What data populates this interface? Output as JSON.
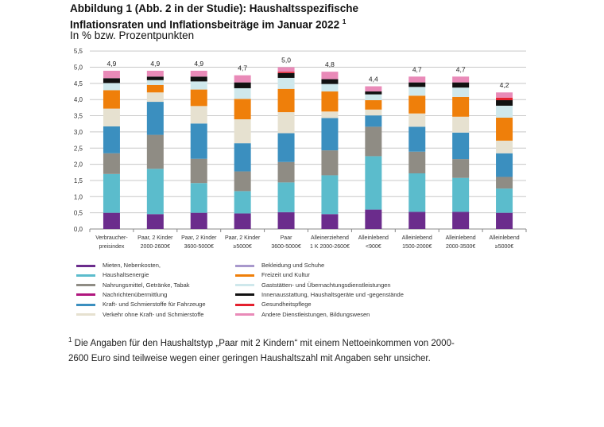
{
  "header": {
    "title_line1": "Abbildung 1 (Abb. 2 in der Studie): Haushaltsspezifische",
    "title_line2": "Inflationsraten und Inflationsbeiträge im Januar 2022",
    "title_sup": "1",
    "subtitle": "In % bzw. Prozentpunkten"
  },
  "chart_data": {
    "type": "bar",
    "stacked": true,
    "title": "Haushaltsspezifische Inflationsraten und Inflationsbeiträge im Januar 2022",
    "ylabel": "In % bzw. Prozentpunkten",
    "ylim": [
      0,
      5.5
    ],
    "yticks": [
      "0,0",
      "0,5",
      "1,0",
      "1,5",
      "2,0",
      "2,5",
      "3,0",
      "3,5",
      "4,0",
      "4,5",
      "5,0",
      "5,5"
    ],
    "grid": true,
    "legend_position": "bottom",
    "categories": [
      [
        "Verbraucher-",
        "preisindex"
      ],
      [
        "Paar, 2 Kinder",
        "2000-2600€"
      ],
      [
        "Paar, 2 Kinder",
        "3600-5000€"
      ],
      [
        "Paar, 2 Kinder",
        "≥5000€"
      ],
      [
        "Paar",
        "3600-5000€"
      ],
      [
        "Alleinerziehend",
        "1 K 2000-2600€"
      ],
      [
        "Alleinlebend",
        "<900€"
      ],
      [
        "Alleinlebend",
        "1500-2000€"
      ],
      [
        "Alleinlebend",
        "2000-3500€"
      ],
      [
        "Alleinlebend",
        "≥5000€"
      ]
    ],
    "totals": [
      "4,9",
      "4,9",
      "4,9",
      "4,7",
      "5,0",
      "4,8",
      "4,4",
      "4,7",
      "4,7",
      "4,2"
    ],
    "total_values": [
      4.9,
      4.9,
      4.9,
      4.7,
      5.0,
      4.8,
      4.4,
      4.7,
      4.7,
      4.2
    ],
    "series": [
      {
        "name": "Mieten, Nebenkosten,",
        "color": "#6b2c8c",
        "stacked": true,
        "values": [
          0.5,
          0.46,
          0.5,
          0.48,
          0.52,
          0.46,
          0.6,
          0.53,
          0.53,
          0.5
        ]
      },
      {
        "name": "Haushaltsenergie",
        "color": "#5bbccc",
        "stacked": true,
        "values": [
          1.2,
          1.4,
          0.92,
          0.69,
          0.92,
          1.2,
          1.65,
          1.19,
          1.05,
          0.75
        ]
      },
      {
        "name": "Nahrungsmittel, Getränke, Tabak",
        "color": "#8f8c84",
        "stacked": true,
        "values": [
          0.64,
          1.05,
          0.75,
          0.61,
          0.63,
          0.77,
          0.91,
          0.67,
          0.58,
          0.36
        ]
      },
      {
        "name": "Kraft- und Schmierstoffe für Fahrzeuge",
        "color": "#3b8fbf",
        "stacked": true,
        "values": [
          0.83,
          1.02,
          1.09,
          0.87,
          0.89,
          1.0,
          0.35,
          0.77,
          0.82,
          0.73
        ]
      },
      {
        "name": "Verkehr ohne Kraft- und Schmierstoffe",
        "color": "#e6e1d0",
        "stacked": true,
        "values": [
          0.55,
          0.29,
          0.54,
          0.74,
          0.65,
          0.2,
          0.18,
          0.41,
          0.49,
          0.39
        ]
      },
      {
        "name": "Bekleidung und Schuhe",
        "color": "#a898cc",
        "stacked": true,
        "values": [
          0,
          0,
          0,
          0,
          0,
          0,
          0,
          0,
          0,
          0
        ]
      },
      {
        "name": "Freizeit und Kultur",
        "color": "#ef7f0a",
        "stacked": true,
        "values": [
          0.57,
          0.23,
          0.51,
          0.63,
          0.72,
          0.62,
          0.29,
          0.55,
          0.61,
          0.71
        ]
      },
      {
        "name": "Gaststätten- und Übernachtungsdienstleistungen",
        "color": "#cfe8ec",
        "stacked": true,
        "values": [
          0.22,
          0.15,
          0.25,
          0.33,
          0.34,
          0.23,
          0.18,
          0.27,
          0.29,
          0.37
        ]
      },
      {
        "name": "Nachrichtenübermittlung",
        "color": "#b0167e",
        "stacked": true,
        "values": [
          0,
          0,
          0,
          0,
          0,
          0,
          0,
          0,
          0,
          0
        ]
      },
      {
        "name": "Innenausstattung, Haushaltsgeräte und -gegenstände",
        "color": "#111111",
        "stacked": true,
        "values": [
          0.15,
          0.11,
          0.15,
          0.18,
          0.15,
          0.15,
          0.09,
          0.14,
          0.16,
          0.17
        ]
      },
      {
        "name": "Gesundheitspflege",
        "color": "#e4202e",
        "stacked": true,
        "values": [
          0,
          0,
          0,
          0,
          0.04,
          0,
          0,
          0,
          0,
          0.08
        ]
      },
      {
        "name": "Andere Dienstleistungen, Bildungswesen",
        "color": "#e98ab8",
        "stacked": true,
        "values": [
          0.23,
          0.18,
          0.18,
          0.22,
          0.14,
          0.23,
          0.16,
          0.18,
          0.18,
          0.16
        ]
      }
    ]
  },
  "legend": {
    "left": [
      "Mieten, Nebenkosten,",
      "Haushaltsenergie",
      "Nahrungsmittel, Getränke, Tabak",
      "Nachrichtenübermittlung",
      "Kraft- und Schmierstoffe für Fahrzeuge",
      "Verkehr ohne Kraft- und Schmierstoffe"
    ],
    "right": [
      "Bekleidung und Schuhe",
      "Freizeit und Kultur",
      "Gaststätten- und Übernachtungsdienstleistungen",
      "Innenausstattung, Haushaltsgeräte und -gegenstände",
      "Gesundheitspflege",
      "Andere Dienstleistungen, Bildungswesen"
    ]
  },
  "footnote": {
    "marker": "1",
    "text": "Die Angaben für den Haushaltstyp „Paar mit 2 Kindern“ mit einem Nettoeinkommen von 2000-2600 Euro sind teilweise wegen einer geringen Haushaltszahl mit Angaben sehr unsicher."
  }
}
